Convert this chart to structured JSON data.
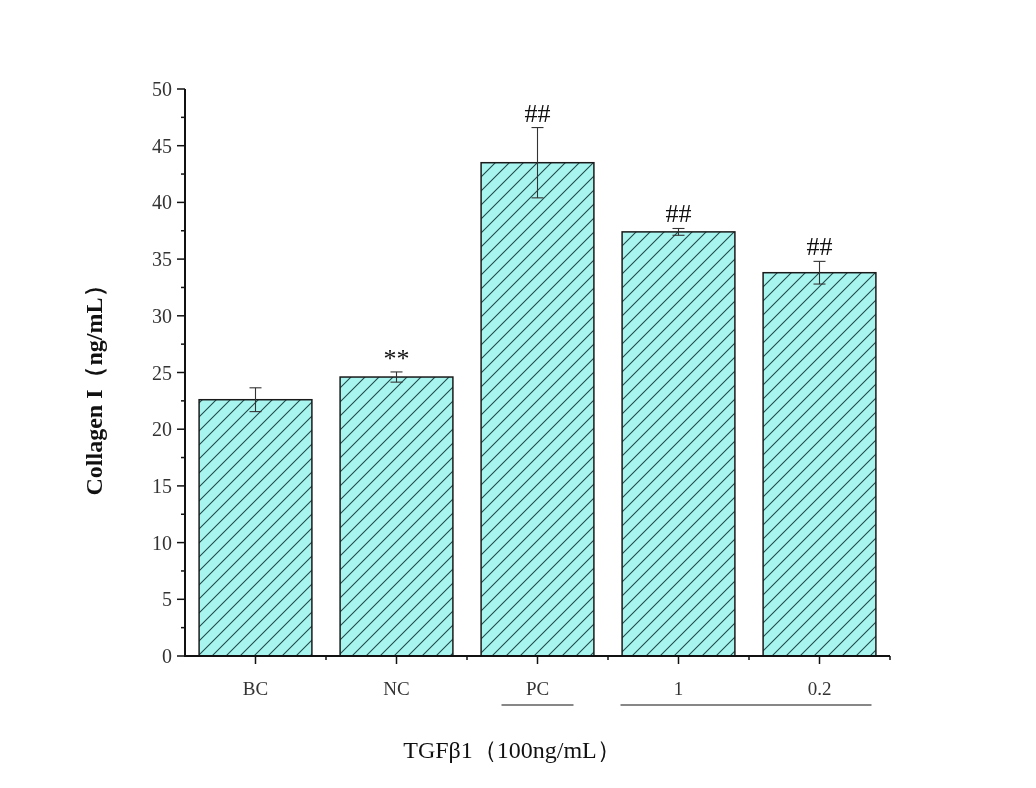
{
  "chart_data": {
    "type": "bar",
    "ylabel": "Collagen I（ng/mL）",
    "xlabel": "TGFβ1（100ng/mL）",
    "categories": [
      "BC",
      "NC",
      "PC",
      "1",
      "0.2"
    ],
    "values": [
      22.6,
      24.6,
      43.5,
      37.4,
      33.8
    ],
    "errors": [
      1.05,
      0.45,
      3.1,
      0.3,
      1.0
    ],
    "color": "#a8f5f0",
    "ylim": [
      0,
      50
    ],
    "yticks": [
      0,
      5,
      10,
      15,
      20,
      25,
      30,
      35,
      40,
      45,
      50
    ],
    "annotations": [
      {
        "text": "**",
        "x": "NC",
        "y": 25.0
      },
      {
        "text": "##",
        "x": "PC",
        "y": 46.6
      },
      {
        "text": "##",
        "x": "1",
        "y": 37.7
      },
      {
        "text": "##",
        "x": "0.2",
        "y": 34.8
      }
    ]
  }
}
